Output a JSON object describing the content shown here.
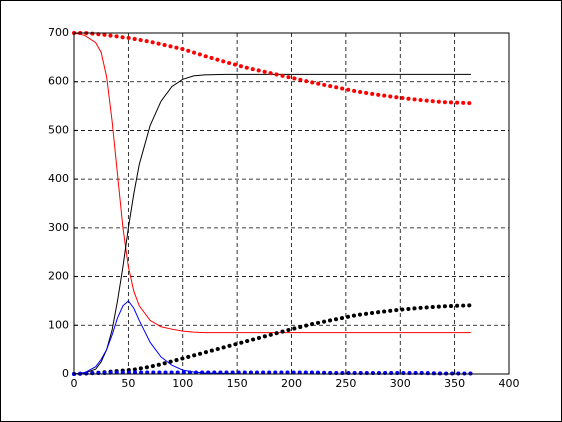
{
  "chart_data": {
    "type": "line",
    "x": [
      0,
      10,
      20,
      25,
      30,
      35,
      40,
      45,
      50,
      55,
      60,
      70,
      80,
      90,
      100,
      110,
      120,
      140,
      160,
      180,
      200,
      220,
      240,
      260,
      280,
      300,
      320,
      340,
      365
    ],
    "series": [
      {
        "color": "#ff0000",
        "style": "solid",
        "values": [
          700,
          695,
          680,
          660,
          610,
          520,
          410,
          300,
          220,
          170,
          140,
          110,
          97,
          92,
          88,
          86,
          85,
          85,
          85,
          85,
          85,
          85,
          85,
          85,
          85,
          85,
          85,
          85,
          85
        ]
      },
      {
        "color": "#000000",
        "style": "solid",
        "values": [
          0,
          2,
          10,
          25,
          50,
          90,
          150,
          220,
          300,
          370,
          430,
          510,
          560,
          590,
          605,
          612,
          614,
          615,
          615,
          615,
          615,
          615,
          615,
          615,
          615,
          615,
          615,
          615,
          615
        ]
      },
      {
        "color": "#0000ff",
        "style": "solid",
        "values": [
          0,
          3,
          15,
          30,
          50,
          80,
          115,
          140,
          150,
          135,
          110,
          65,
          35,
          18,
          8,
          4,
          2,
          1,
          0,
          0,
          0,
          0,
          0,
          0,
          0,
          0,
          0,
          0,
          0
        ]
      },
      {
        "color": "#ff0000",
        "style": "dotted",
        "values": [
          700,
          700,
          698,
          697,
          696,
          694,
          693,
          691,
          690,
          688,
          686,
          682,
          677,
          672,
          667,
          660,
          653,
          640,
          628,
          618,
          608,
          598,
          589,
          580,
          573,
          567,
          562,
          558,
          556
        ]
      },
      {
        "color": "#000000",
        "style": "dotted",
        "values": [
          0,
          1,
          2,
          3,
          4,
          5,
          6,
          7,
          8,
          9,
          11,
          15,
          20,
          26,
          32,
          38,
          44,
          56,
          68,
          80,
          92,
          103,
          112,
          121,
          127,
          132,
          136,
          139,
          141
        ]
      },
      {
        "color": "#0000ff",
        "style": "dotted",
        "values": [
          0,
          1,
          2,
          2,
          2,
          3,
          3,
          3,
          3,
          3,
          3,
          3,
          3,
          3,
          3,
          3,
          3,
          3,
          3,
          3,
          3,
          3,
          2,
          2,
          2,
          2,
          2,
          1,
          1
        ]
      }
    ],
    "xlim": [
      0,
      400
    ],
    "xticks": [
      0,
      50,
      100,
      150,
      200,
      250,
      300,
      350,
      400
    ],
    "ylim": [
      0,
      700
    ],
    "yticks": [
      0,
      100,
      200,
      300,
      400,
      500,
      600,
      700
    ],
    "grid": true
  }
}
